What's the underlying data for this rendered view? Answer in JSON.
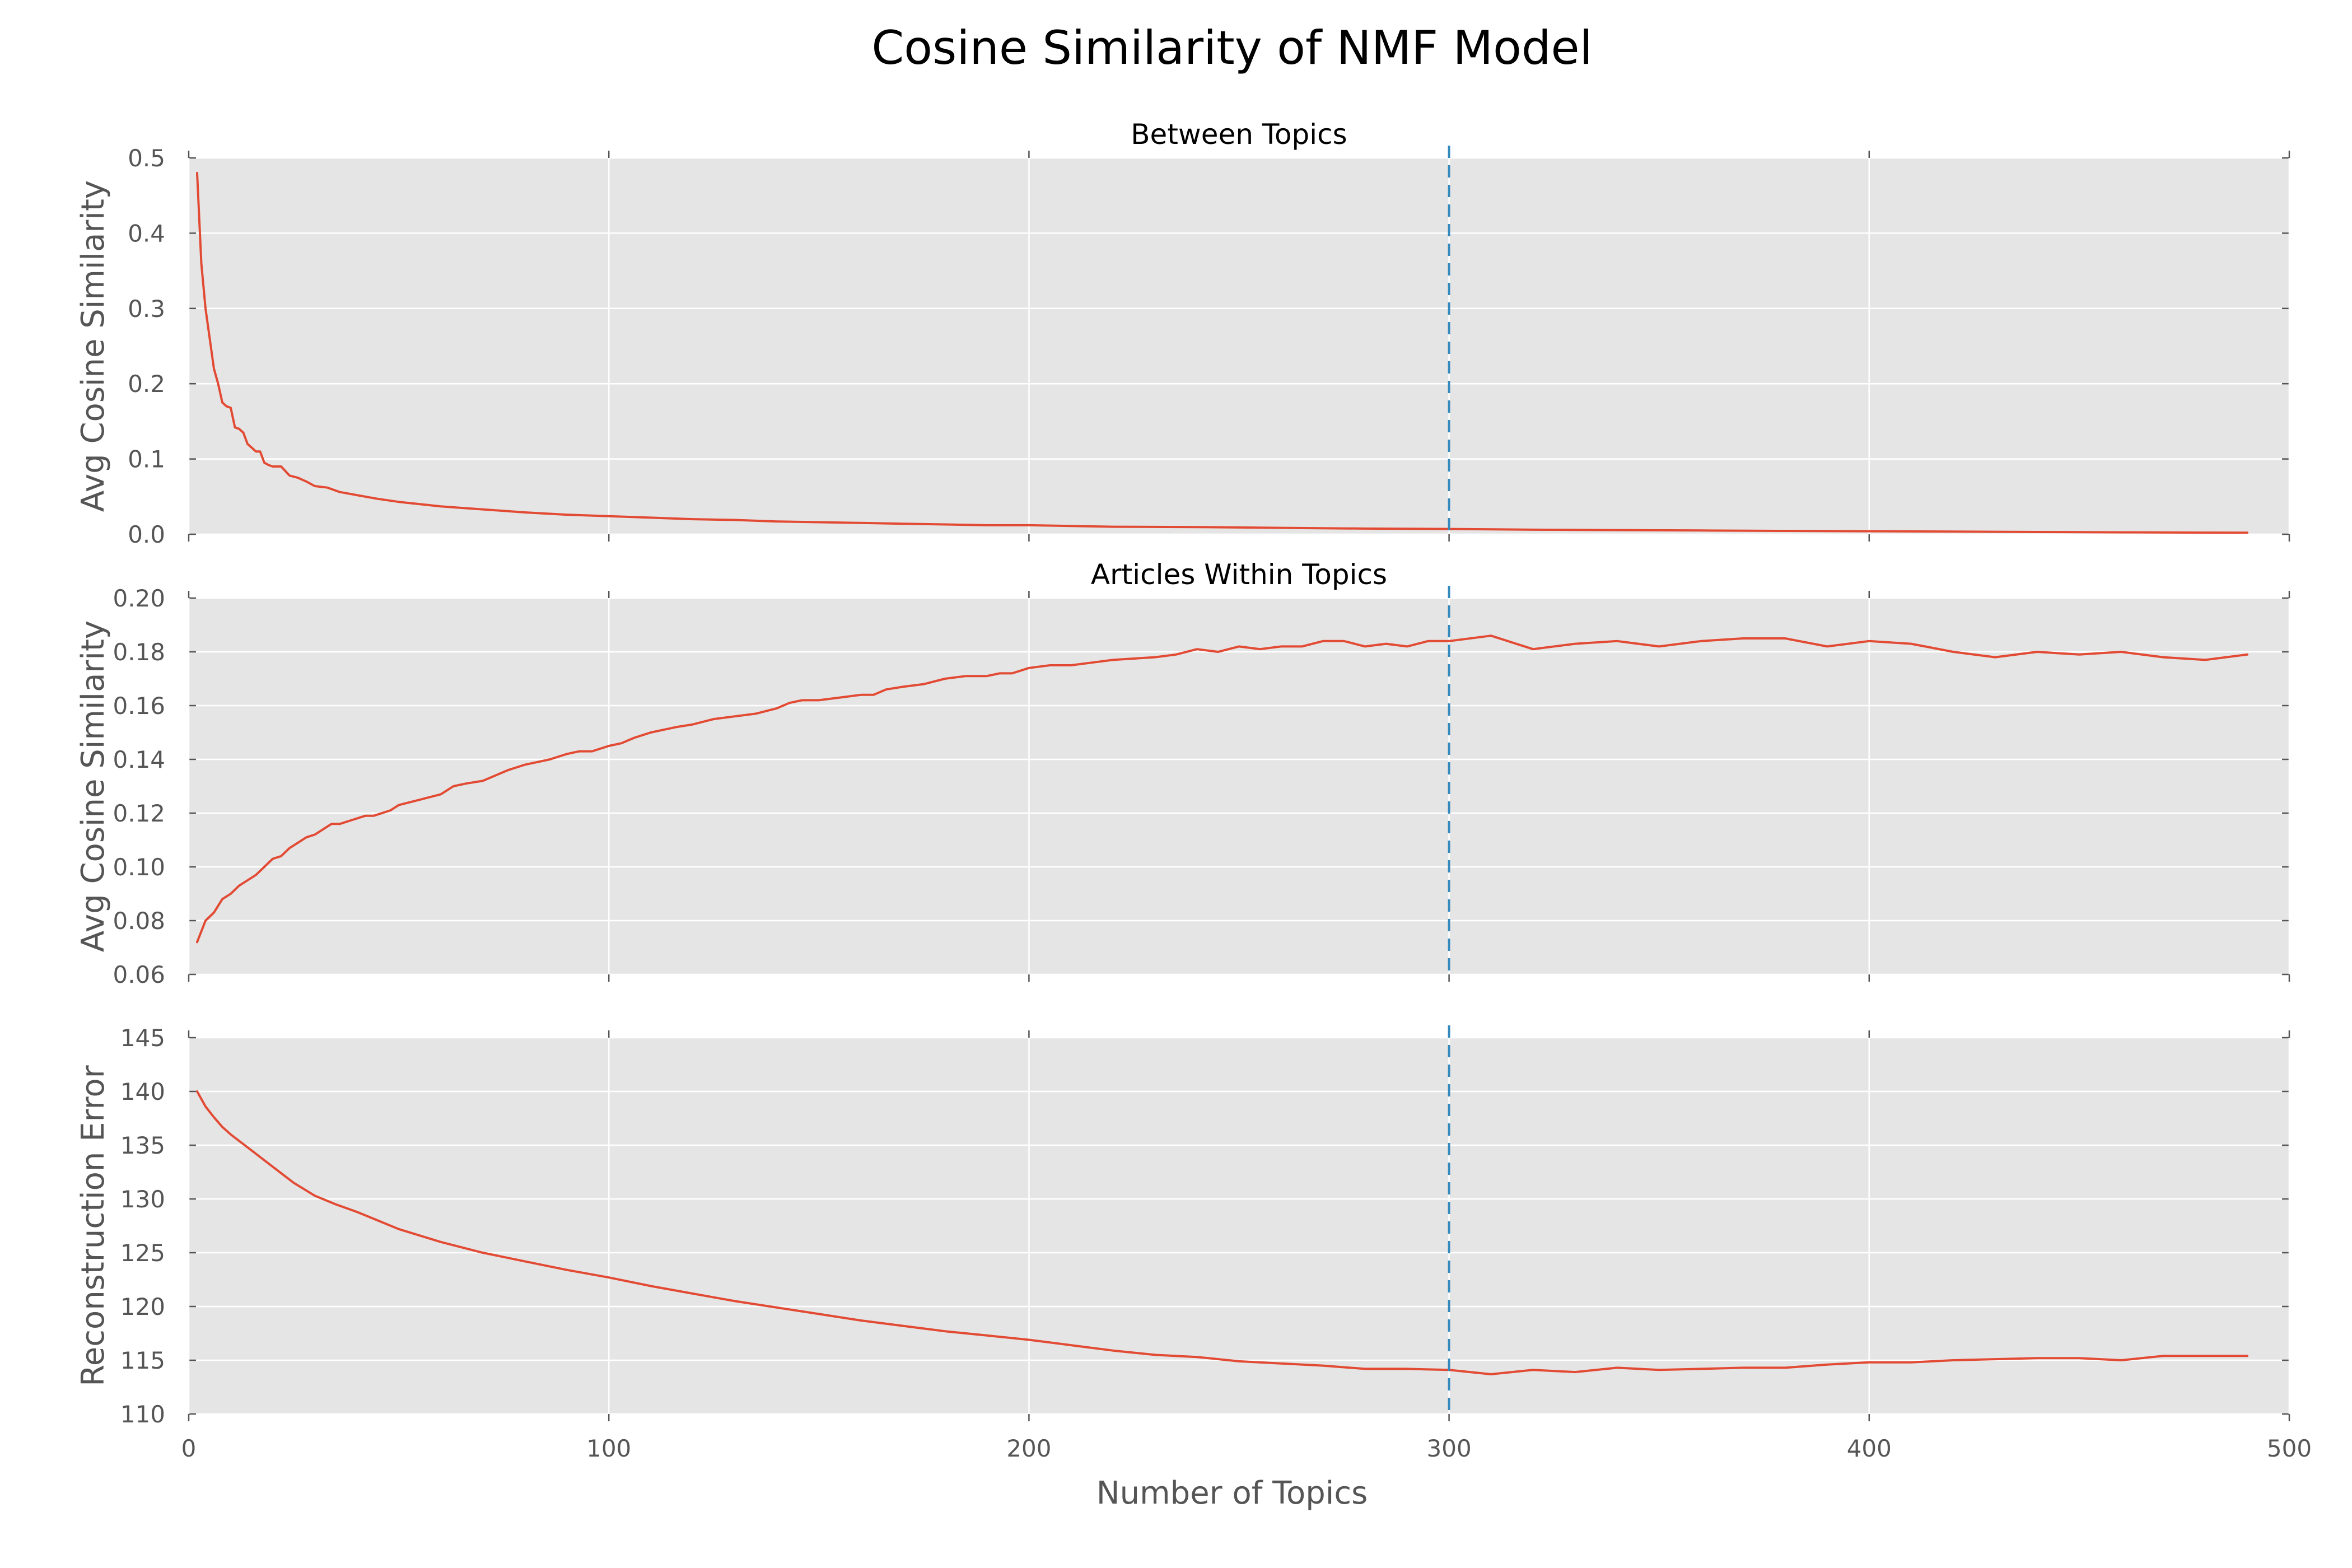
{
  "figure_title": "Cosine Similarity of NMF Model",
  "x_axis_label": "Number of Topics",
  "colors": {
    "series": "#e24a33",
    "reference_line": "#348abd",
    "panel_background": "#e5e5e5",
    "grid": "#ffffff"
  },
  "chart_data": [
    {
      "type": "line",
      "title": "Between Topics",
      "xlabel": "",
      "ylabel": "Avg Cosine Similarity",
      "xlim": [
        0,
        500
      ],
      "ylim": [
        0.0,
        0.5
      ],
      "xticks": [
        0,
        100,
        200,
        300,
        400,
        500
      ],
      "xtick_labels": [],
      "yticks": [
        0.0,
        0.1,
        0.2,
        0.3,
        0.4,
        0.5
      ],
      "ytick_labels": [
        "0.0",
        "0.1",
        "0.2",
        "0.3",
        "0.4",
        "0.5"
      ],
      "grid": true,
      "vline_x": 300,
      "series": [
        {
          "x": [
            2,
            3,
            4,
            5,
            6,
            7,
            8,
            9,
            10,
            11,
            12,
            13,
            14,
            15,
            16,
            17,
            18,
            19,
            20,
            22,
            24,
            26,
            28,
            30,
            33,
            36,
            40,
            45,
            50,
            55,
            60,
            65,
            70,
            80,
            90,
            100,
            110,
            120,
            130,
            140,
            150,
            160,
            170,
            180,
            190,
            200,
            220,
            240,
            260,
            280,
            300,
            320,
            340,
            360,
            380,
            400,
            420,
            440,
            460,
            490
          ],
          "y": [
            0.48,
            0.36,
            0.3,
            0.26,
            0.22,
            0.2,
            0.175,
            0.17,
            0.168,
            0.142,
            0.14,
            0.135,
            0.12,
            0.115,
            0.11,
            0.11,
            0.095,
            0.092,
            0.09,
            0.09,
            0.078,
            0.075,
            0.07,
            0.064,
            0.062,
            0.056,
            0.052,
            0.047,
            0.043,
            0.04,
            0.037,
            0.035,
            0.033,
            0.029,
            0.026,
            0.024,
            0.022,
            0.02,
            0.019,
            0.017,
            0.016,
            0.015,
            0.014,
            0.013,
            0.012,
            0.012,
            0.01,
            0.0095,
            0.0085,
            0.0075,
            0.007,
            0.006,
            0.0055,
            0.005,
            0.0045,
            0.004,
            0.0035,
            0.003,
            0.0025,
            0.002
          ]
        }
      ]
    },
    {
      "type": "line",
      "title": "Articles Within Topics",
      "xlabel": "",
      "ylabel": "Avg Cosine Similarity",
      "xlim": [
        0,
        500
      ],
      "ylim": [
        0.06,
        0.2
      ],
      "xticks": [
        0,
        100,
        200,
        300,
        400,
        500
      ],
      "xtick_labels": [],
      "yticks": [
        0.06,
        0.08,
        0.1,
        0.12,
        0.14,
        0.16,
        0.18,
        0.2
      ],
      "ytick_labels": [
        "0.06",
        "0.08",
        "0.10",
        "0.12",
        "0.14",
        "0.16",
        "0.18",
        "0.20"
      ],
      "grid": true,
      "vline_x": 300,
      "series": [
        {
          "x": [
            2,
            4,
            6,
            8,
            10,
            12,
            14,
            16,
            18,
            20,
            22,
            24,
            26,
            28,
            30,
            32,
            34,
            36,
            38,
            40,
            42,
            44,
            46,
            48,
            50,
            55,
            60,
            63,
            66,
            70,
            73,
            76,
            80,
            83,
            86,
            90,
            93,
            96,
            100,
            103,
            106,
            110,
            113,
            116,
            120,
            125,
            130,
            135,
            140,
            143,
            146,
            150,
            155,
            160,
            163,
            166,
            170,
            175,
            180,
            185,
            190,
            193,
            196,
            200,
            205,
            210,
            215,
            220,
            230,
            235,
            240,
            245,
            250,
            255,
            260,
            265,
            270,
            275,
            280,
            285,
            290,
            295,
            300,
            310,
            320,
            330,
            340,
            350,
            360,
            370,
            380,
            390,
            400,
            410,
            420,
            430,
            440,
            450,
            460,
            470,
            480,
            490
          ],
          "y": [
            0.072,
            0.08,
            0.083,
            0.088,
            0.09,
            0.093,
            0.095,
            0.097,
            0.1,
            0.103,
            0.104,
            0.107,
            0.109,
            0.111,
            0.112,
            0.114,
            0.116,
            0.116,
            0.117,
            0.118,
            0.119,
            0.119,
            0.12,
            0.121,
            0.123,
            0.125,
            0.127,
            0.13,
            0.131,
            0.132,
            0.134,
            0.136,
            0.138,
            0.139,
            0.14,
            0.142,
            0.143,
            0.143,
            0.145,
            0.146,
            0.148,
            0.15,
            0.151,
            0.152,
            0.153,
            0.155,
            0.156,
            0.157,
            0.159,
            0.161,
            0.162,
            0.162,
            0.163,
            0.164,
            0.164,
            0.166,
            0.167,
            0.168,
            0.17,
            0.171,
            0.171,
            0.172,
            0.172,
            0.174,
            0.175,
            0.175,
            0.176,
            0.177,
            0.178,
            0.179,
            0.181,
            0.18,
            0.182,
            0.181,
            0.182,
            0.182,
            0.184,
            0.184,
            0.182,
            0.183,
            0.182,
            0.184,
            0.184,
            0.186,
            0.181,
            0.183,
            0.184,
            0.182,
            0.184,
            0.185,
            0.185,
            0.182,
            0.184,
            0.183,
            0.18,
            0.178,
            0.18,
            0.179,
            0.18,
            0.178,
            0.177,
            0.179
          ]
        }
      ]
    },
    {
      "type": "line",
      "title": "",
      "xlabel": "Number of Topics",
      "ylabel": "Reconstruction Error",
      "xlim": [
        0,
        500
      ],
      "ylim": [
        110,
        145
      ],
      "xticks": [
        0,
        100,
        200,
        300,
        400,
        500
      ],
      "xtick_labels": [
        "0",
        "100",
        "200",
        "300",
        "400",
        "500"
      ],
      "yticks": [
        110,
        115,
        120,
        125,
        130,
        135,
        140,
        145
      ],
      "ytick_labels": [
        "110",
        "115",
        "120",
        "125",
        "130",
        "135",
        "140",
        "145"
      ],
      "grid": true,
      "vline_x": 300,
      "series": [
        {
          "x": [
            2,
            4,
            6,
            8,
            10,
            12,
            15,
            18,
            20,
            25,
            30,
            35,
            40,
            45,
            50,
            55,
            60,
            65,
            70,
            80,
            90,
            100,
            110,
            120,
            130,
            140,
            150,
            160,
            170,
            180,
            190,
            200,
            210,
            220,
            230,
            240,
            250,
            260,
            270,
            280,
            290,
            300,
            310,
            320,
            330,
            340,
            350,
            360,
            370,
            380,
            390,
            400,
            410,
            420,
            430,
            440,
            450,
            460,
            470,
            480,
            490
          ],
          "y": [
            140,
            138.6,
            137.6,
            136.7,
            136,
            135.4,
            134.5,
            133.6,
            133,
            131.5,
            130.3,
            129.5,
            128.8,
            128,
            127.2,
            126.6,
            126,
            125.5,
            125,
            124.2,
            123.4,
            122.7,
            121.9,
            121.2,
            120.5,
            119.9,
            119.3,
            118.7,
            118.2,
            117.7,
            117.3,
            116.9,
            116.4,
            115.9,
            115.5,
            115.3,
            114.9,
            114.7,
            114.5,
            114.2,
            114.2,
            114.1,
            113.7,
            114.1,
            113.9,
            114.3,
            114.1,
            114.2,
            114.3,
            114.3,
            114.6,
            114.8,
            114.8,
            115,
            115.1,
            115.2,
            115.2,
            115,
            115.4,
            115.4,
            115.4
          ]
        }
      ]
    }
  ]
}
